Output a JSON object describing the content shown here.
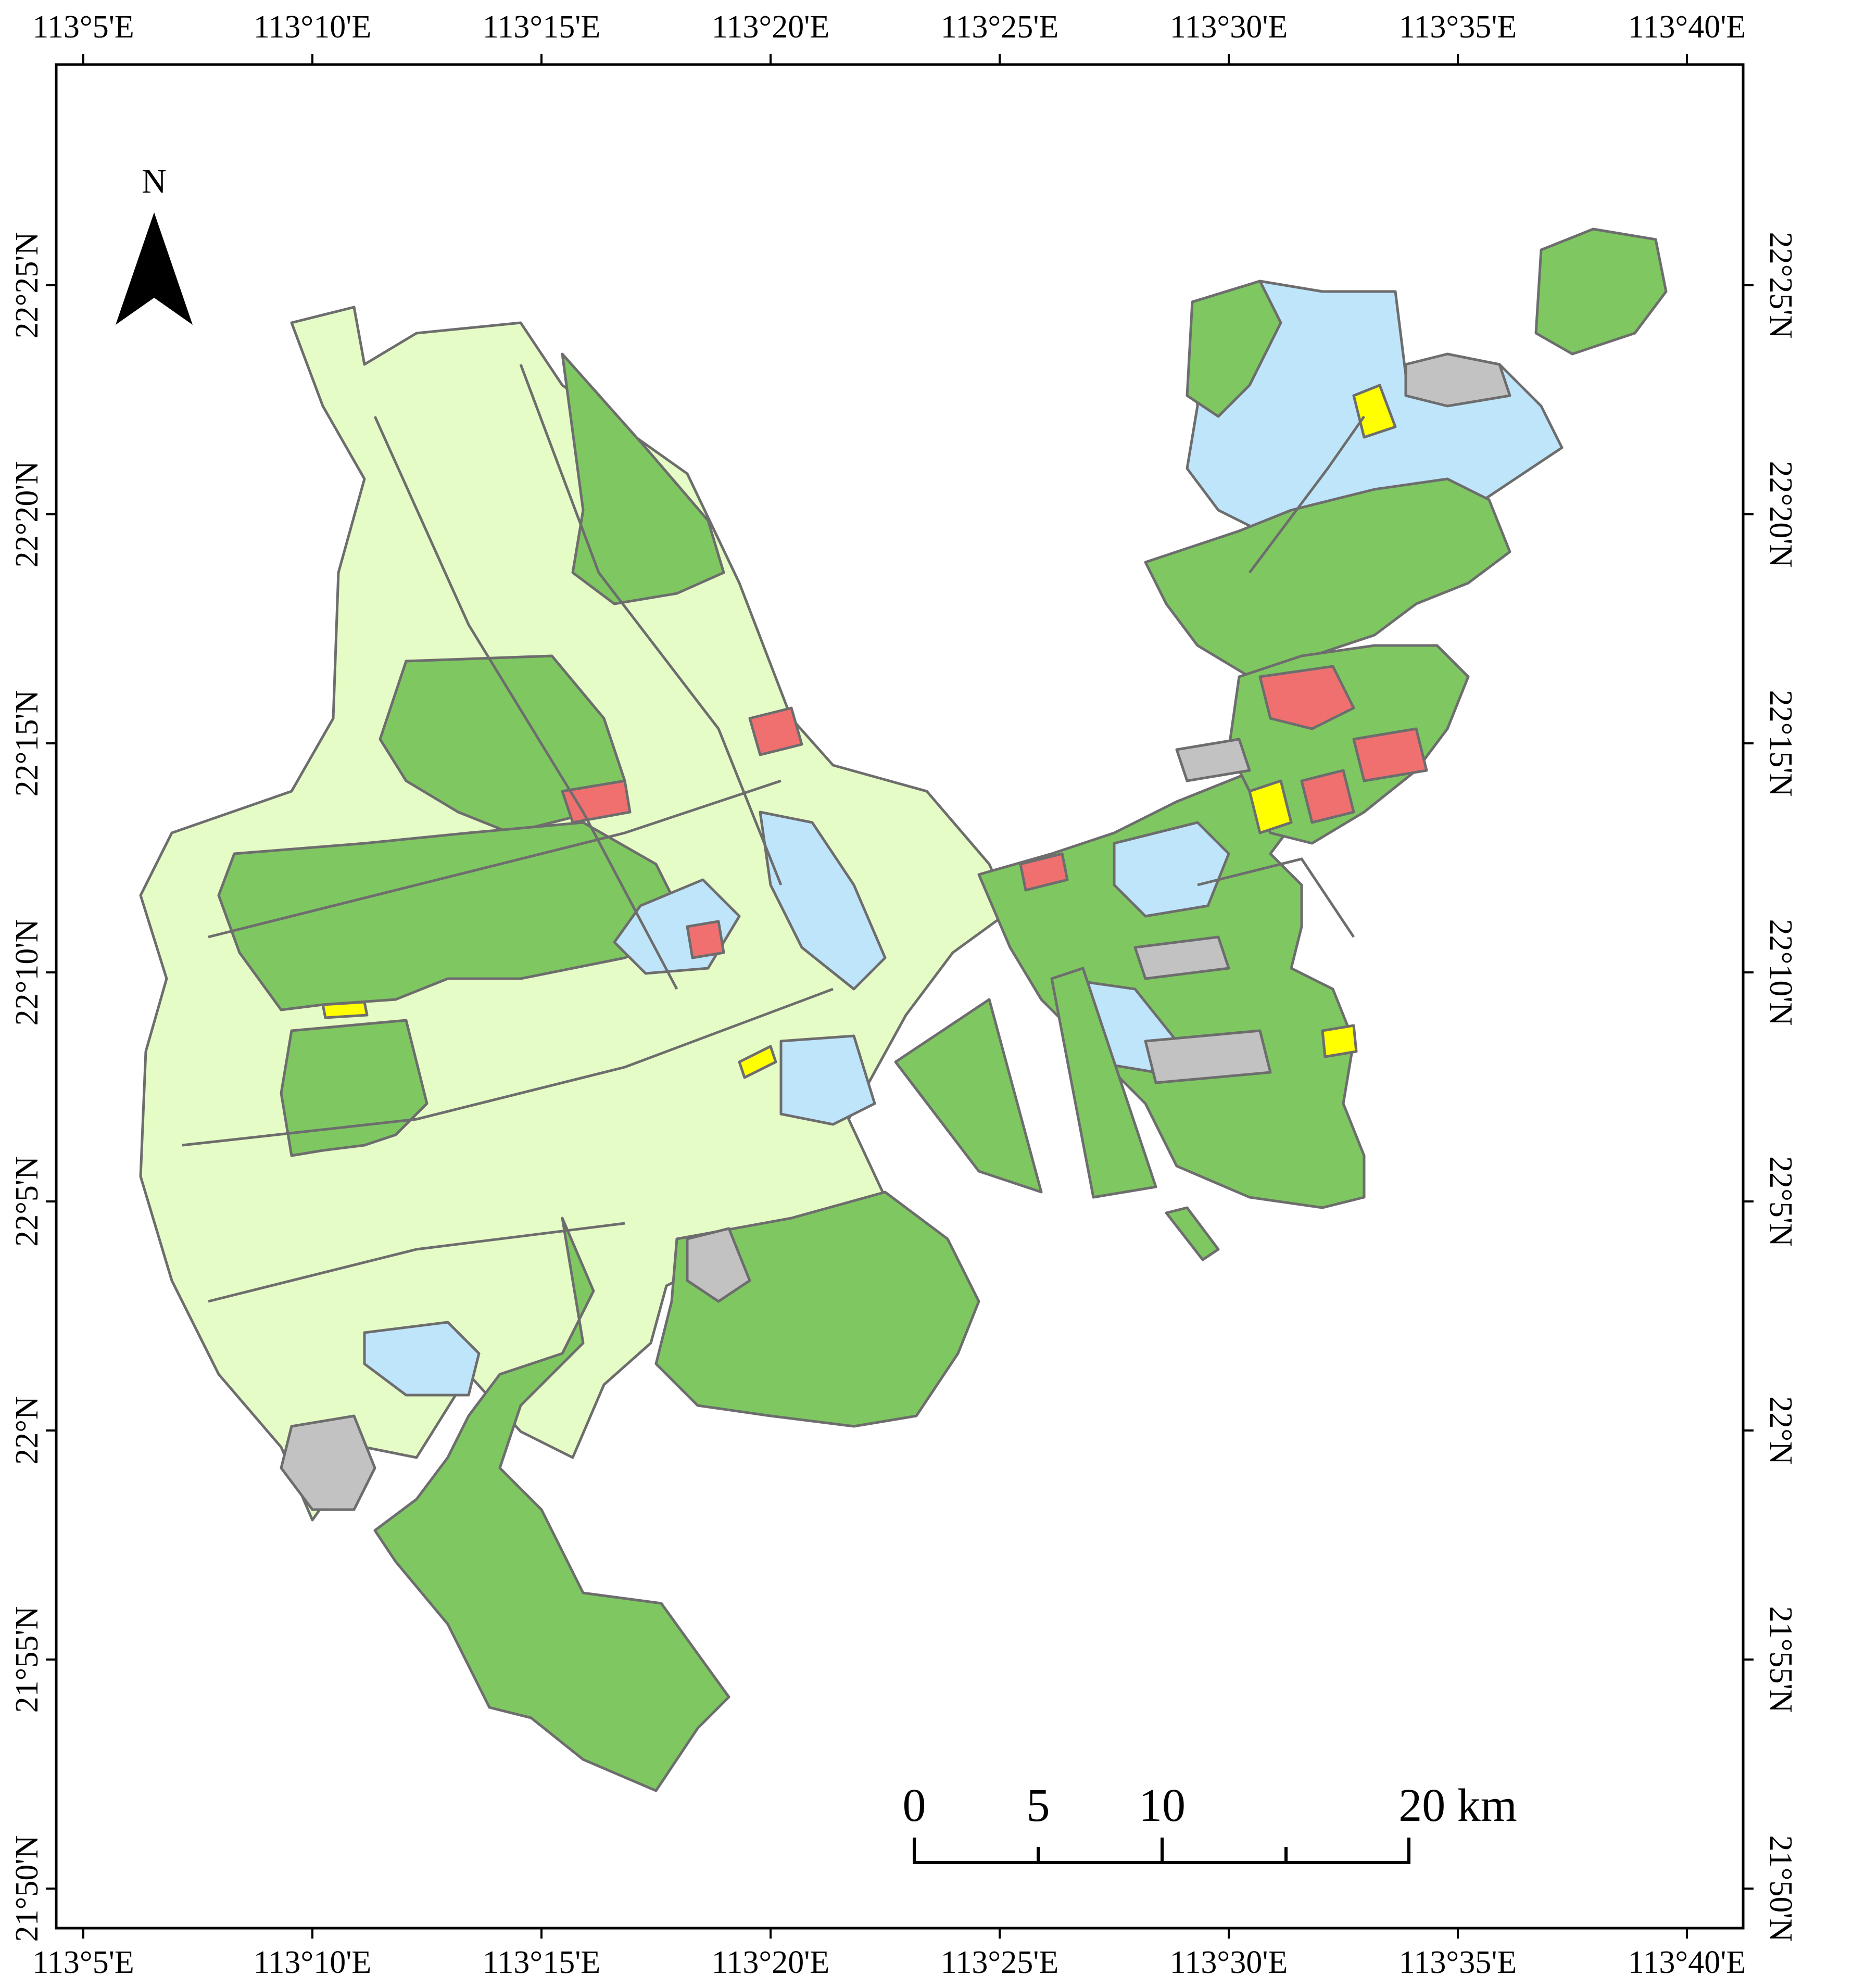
{
  "colors": {
    "farmland": "#e6fcc6",
    "forest": "#7ec761",
    "water": "#bfe5fa",
    "built": "#c2c2c2",
    "residential": "#f07070",
    "commercial": "#ffff00",
    "boundary": "#6d6d6d",
    "frame": "#000000"
  },
  "lon_labels": [
    "113°5'E",
    "113°10'E",
    "113°15'E",
    "113°20'E",
    "113°25'E",
    "113°30'E",
    "113°35'E",
    "113°40'E"
  ],
  "lat_labels": [
    "22°25'N",
    "22°20'N",
    "22°15'N",
    "22°10'N",
    "22°5'N",
    "22°N",
    "21°55'N",
    "21°50'N"
  ],
  "north_arrow": {
    "label": "N",
    "icon": "north-arrow-icon"
  },
  "scale_bar": {
    "ticks": [
      "0",
      "5",
      "10",
      "20 km"
    ]
  }
}
